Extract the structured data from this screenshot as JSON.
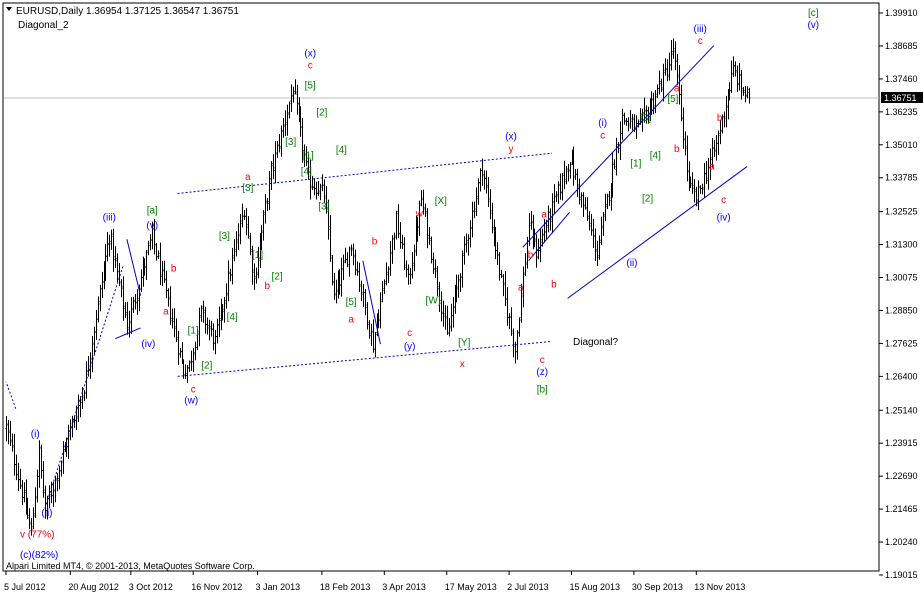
{
  "header": {
    "symbol_line": "EURUSD,Daily  1.36954 1.37125 1.36547 1.36751",
    "indicator_name": "Diagonal_2"
  },
  "footer": {
    "copyright": "Alpari Limited MT4, © 2001-2013, MetaQuotes Software Corp."
  },
  "annotation_note": "Diagonal?",
  "chart_data": {
    "type": "ohlc",
    "symbol": "EURUSD",
    "timeframe": "Daily",
    "last_bar": {
      "open": 1.36954,
      "high": 1.37125,
      "low": 1.36547,
      "close": 1.36751
    },
    "current_price_label": "1.36751",
    "ylim": [
      1.19015,
      1.3991
    ],
    "y_ticks": [
      "1.39910",
      "1.38685",
      "1.37460",
      "1.36235",
      "1.35010",
      "1.33785",
      "1.32525",
      "1.31300",
      "1.30075",
      "1.28850",
      "1.27625",
      "1.26400",
      "1.25140",
      "1.23915",
      "1.22690",
      "1.21465",
      "1.20240",
      "1.19015"
    ],
    "x_ticks": [
      {
        "label": "5 Jul 2012",
        "bar": 0
      },
      {
        "label": "20 Aug 2012",
        "bar": 33
      },
      {
        "label": "3 Oct 2012",
        "bar": 64
      },
      {
        "label": "16 Nov 2012",
        "bar": 96
      },
      {
        "label": "3 Jan 2013",
        "bar": 129
      },
      {
        "label": "18 Feb 2013",
        "bar": 162
      },
      {
        "label": "3 Apr 2013",
        "bar": 194
      },
      {
        "label": "17 May 2013",
        "bar": 226
      },
      {
        "label": "2 Jul 2013",
        "bar": 258
      },
      {
        "label": "15 Aug 2013",
        "bar": 290
      },
      {
        "label": "30 Sep 2013",
        "bar": 322
      },
      {
        "label": "13 Nov 2013",
        "bar": 354
      }
    ],
    "bar_count": 382,
    "swing_path": [
      [
        0,
        1.245
      ],
      [
        13,
        1.206
      ],
      [
        17,
        1.2355
      ],
      [
        20,
        1.214
      ],
      [
        40,
        1.26
      ],
      [
        53,
        1.317
      ],
      [
        62,
        1.283
      ],
      [
        75,
        1.316
      ],
      [
        91,
        1.266
      ],
      [
        94,
        1.268
      ],
      [
        100,
        1.2875
      ],
      [
        107,
        1.277
      ],
      [
        122,
        1.3265
      ],
      [
        127,
        1.3
      ],
      [
        136,
        1.34
      ],
      [
        147,
        1.371
      ],
      [
        155,
        1.337
      ],
      [
        163,
        1.332
      ],
      [
        168,
        1.293
      ],
      [
        177,
        1.313
      ],
      [
        188,
        1.276
      ],
      [
        200,
        1.322
      ],
      [
        206,
        1.299
      ],
      [
        213,
        1.33
      ],
      [
        226,
        1.279
      ],
      [
        244,
        1.342
      ],
      [
        254,
        1.299
      ],
      [
        261,
        1.274
      ],
      [
        268,
        1.321
      ],
      [
        272,
        1.31
      ],
      [
        289,
        1.345
      ],
      [
        303,
        1.31
      ],
      [
        316,
        1.36
      ],
      [
        324,
        1.356
      ],
      [
        332,
        1.367
      ],
      [
        340,
        1.38
      ],
      [
        342,
        1.386
      ],
      [
        350,
        1.335
      ],
      [
        354,
        1.33
      ],
      [
        364,
        1.35
      ],
      [
        373,
        1.378
      ],
      [
        378,
        1.37
      ],
      [
        381,
        1.3675
      ]
    ],
    "trendlines": [
      {
        "from": [
          5,
          1.252
        ],
        "to": [
          0,
          1.262
        ],
        "style": "dotted"
      },
      {
        "from": [
          20,
          1.215
        ],
        "to": [
          60,
          1.305
        ],
        "style": "dotted"
      },
      {
        "from": [
          62,
          1.315
        ],
        "to": [
          69,
          1.294
        ],
        "style": "solid"
      },
      {
        "from": [
          56,
          1.278
        ],
        "to": [
          69,
          1.282
        ],
        "style": "solid"
      },
      {
        "from": [
          88,
          1.332
        ],
        "to": [
          280,
          1.347
        ],
        "style": "dotted"
      },
      {
        "from": [
          88,
          1.264
        ],
        "to": [
          280,
          1.277
        ],
        "style": "dotted"
      },
      {
        "from": [
          183,
          1.307
        ],
        "to": [
          192,
          1.276
        ],
        "style": "solid"
      },
      {
        "from": [
          265,
          1.312
        ],
        "to": [
          363,
          1.387
        ],
        "style": "solid"
      },
      {
        "from": [
          268,
          1.307
        ],
        "to": [
          289,
          1.325
        ],
        "style": "solid"
      },
      {
        "from": [
          288,
          1.293
        ],
        "to": [
          380,
          1.342
        ],
        "style": "solid"
      }
    ],
    "wave_labels": [
      {
        "text": "(i)",
        "bar": 15,
        "price": 1.2415,
        "color": "#0000ff"
      },
      {
        "text": "(ii)",
        "bar": 21,
        "price": 1.212,
        "color": "#0000ff"
      },
      {
        "text": "v (77%)",
        "bar": 16,
        "price": 1.204,
        "color": "#ff0000"
      },
      {
        "text": "(c)(82%)",
        "bar": 17,
        "price": 1.1965,
        "color": "#0000ff"
      },
      {
        "text": "(iii)",
        "bar": 53,
        "price": 1.322,
        "color": "#0000ff"
      },
      {
        "text": "[a]",
        "bar": 75,
        "price": 1.3245,
        "color": "#008000"
      },
      {
        "text": "(v)",
        "bar": 75,
        "price": 1.319,
        "color": "#0000ff"
      },
      {
        "text": "b",
        "bar": 86,
        "price": 1.303,
        "color": "#ff0000"
      },
      {
        "text": "a",
        "bar": 82,
        "price": 1.287,
        "color": "#ff0000"
      },
      {
        "text": "(iv)",
        "bar": 73,
        "price": 1.275,
        "color": "#0000ff"
      },
      {
        "text": "[1]",
        "bar": 96,
        "price": 1.28,
        "color": "#008000"
      },
      {
        "text": "[2]",
        "bar": 103,
        "price": 1.267,
        "color": "#008000"
      },
      {
        "text": "c",
        "bar": 96,
        "price": 1.258,
        "color": "#ff0000"
      },
      {
        "text": "(w)",
        "bar": 95,
        "price": 1.254,
        "color": "#0000ff"
      },
      {
        "text": "[3]",
        "bar": 112,
        "price": 1.315,
        "color": "#008000"
      },
      {
        "text": "[4]",
        "bar": 116,
        "price": 1.285,
        "color": "#008000"
      },
      {
        "text": "[1]",
        "bar": 129,
        "price": 1.308,
        "color": "#008000"
      },
      {
        "text": "[2]",
        "bar": 139,
        "price": 1.3,
        "color": "#008000"
      },
      {
        "text": "b",
        "bar": 134,
        "price": 1.2965,
        "color": "#ff0000"
      },
      {
        "text": "a",
        "bar": 124,
        "price": 1.337,
        "color": "#ff0000"
      },
      {
        "text": "[3]",
        "bar": 124,
        "price": 1.333,
        "color": "#008000"
      },
      {
        "text": "[3]",
        "bar": 146,
        "price": 1.35,
        "color": "#008000"
      },
      {
        "text": "[1]",
        "bar": 155,
        "price": 1.345,
        "color": "#008000"
      },
      {
        "text": "[4]",
        "bar": 154,
        "price": 1.339,
        "color": "#008000"
      },
      {
        "text": "[3]",
        "bar": 163,
        "price": 1.326,
        "color": "#008000"
      },
      {
        "text": "[2]",
        "bar": 162,
        "price": 1.361,
        "color": "#008000"
      },
      {
        "text": "[5]",
        "bar": 156,
        "price": 1.371,
        "color": "#008000"
      },
      {
        "text": "c",
        "bar": 156,
        "price": 1.3785,
        "color": "#ff0000"
      },
      {
        "text": "(x)",
        "bar": 156,
        "price": 1.383,
        "color": "#0000ff"
      },
      {
        "text": "[4]",
        "bar": 172,
        "price": 1.347,
        "color": "#008000"
      },
      {
        "text": "[5]",
        "bar": 177,
        "price": 1.2905,
        "color": "#008000"
      },
      {
        "text": "a",
        "bar": 177,
        "price": 1.284,
        "color": "#ff0000"
      },
      {
        "text": "b",
        "bar": 189,
        "price": 1.313,
        "color": "#ff0000"
      },
      {
        "text": "c",
        "bar": 207,
        "price": 1.279,
        "color": "#ff0000"
      },
      {
        "text": "(y)",
        "bar": 207,
        "price": 1.274,
        "color": "#0000ff"
      },
      {
        "text": "w",
        "bar": 212,
        "price": 1.3235,
        "color": "#ff0000"
      },
      {
        "text": "[X]",
        "bar": 223,
        "price": 1.328,
        "color": "#008000"
      },
      {
        "text": "[W]",
        "bar": 219,
        "price": 1.291,
        "color": "#008000"
      },
      {
        "text": "[Y]",
        "bar": 235,
        "price": 1.2755,
        "color": "#008000"
      },
      {
        "text": "x",
        "bar": 234,
        "price": 1.2675,
        "color": "#ff0000"
      },
      {
        "text": "(x)",
        "bar": 259,
        "price": 1.352,
        "color": "#0000ff"
      },
      {
        "text": "y",
        "bar": 259,
        "price": 1.3475,
        "color": "#ff0000"
      },
      {
        "text": "a",
        "bar": 276,
        "price": 1.323,
        "color": "#ff0000"
      },
      {
        "text": "b",
        "bar": 269,
        "price": 1.308,
        "color": "#ff0000"
      },
      {
        "text": "a",
        "bar": 264,
        "price": 1.296,
        "color": "#ff0000"
      },
      {
        "text": "b",
        "bar": 281,
        "price": 1.297,
        "color": "#ff0000"
      },
      {
        "text": "c",
        "bar": 275,
        "price": 1.269,
        "color": "#ff0000"
      },
      {
        "text": "(z)",
        "bar": 275,
        "price": 1.2645,
        "color": "#0000ff"
      },
      {
        "text": "[b]",
        "bar": 275,
        "price": 1.258,
        "color": "#008000"
      },
      {
        "text": "(i)",
        "bar": 306,
        "price": 1.357,
        "color": "#0000ff"
      },
      {
        "text": "c",
        "bar": 306,
        "price": 1.3525,
        "color": "#ff0000"
      },
      {
        "text": "[1]",
        "bar": 323,
        "price": 1.342,
        "color": "#008000"
      },
      {
        "text": "[2]",
        "bar": 329,
        "price": 1.329,
        "color": "#008000"
      },
      {
        "text": "[3]",
        "bar": 328,
        "price": 1.359,
        "color": "#008000"
      },
      {
        "text": "[4]",
        "bar": 333,
        "price": 1.345,
        "color": "#008000"
      },
      {
        "text": "[5]",
        "bar": 342,
        "price": 1.366,
        "color": "#008000"
      },
      {
        "text": "a",
        "bar": 344,
        "price": 1.37,
        "color": "#ff0000"
      },
      {
        "text": "b",
        "bar": 344,
        "price": 1.3475,
        "color": "#ff0000"
      },
      {
        "text": "(ii)",
        "bar": 321,
        "price": 1.305,
        "color": "#0000ff"
      },
      {
        "text": "(iii)",
        "bar": 356,
        "price": 1.392,
        "color": "#0000ff"
      },
      {
        "text": "c",
        "bar": 356,
        "price": 1.3875,
        "color": "#ff0000"
      },
      {
        "text": "b",
        "bar": 366,
        "price": 1.359,
        "color": "#ff0000"
      },
      {
        "text": "a",
        "bar": 362,
        "price": 1.341,
        "color": "#ff0000"
      },
      {
        "text": "c",
        "bar": 368,
        "price": 1.3285,
        "color": "#ff0000"
      },
      {
        "text": "(iv)",
        "bar": 368,
        "price": 1.322,
        "color": "#0000ff"
      },
      {
        "text": "[c]",
        "bar": 414,
        "price": 1.398,
        "color": "#008000"
      },
      {
        "text": "(v)",
        "bar": 414,
        "price": 1.3935,
        "color": "#0000ff"
      }
    ]
  }
}
